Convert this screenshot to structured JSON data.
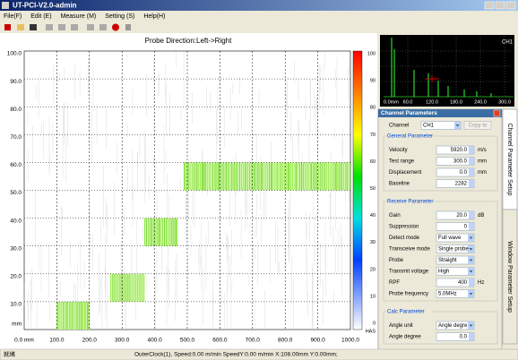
{
  "window": {
    "title": "UT-PCI-V2.0-admin"
  },
  "menu": [
    "File(F)",
    "Edit (E)",
    "Measure (M)",
    "Setting (S)",
    "Help(H)"
  ],
  "cscan": {
    "title": "Probe Direction:Left->Right",
    "y_labels": [
      "100.0",
      "90.0",
      "80.0",
      "70.0",
      "60.0",
      "50.0",
      "40.0",
      "30.0",
      "20.0",
      "10.0"
    ],
    "y_unit": "mm",
    "x_labels": [
      "0.0 mm",
      "100.0",
      "200.0",
      "300.0",
      "400.0",
      "500.0",
      "600.0",
      "700.0",
      "800.0",
      "900.0",
      "1000.0"
    ],
    "scale_labels": [
      "100",
      "90",
      "80",
      "70",
      "60",
      "50",
      "40",
      "30",
      "20",
      "10",
      "0"
    ],
    "scale_unit": "HAS"
  },
  "ascan": {
    "channel": "CH1",
    "x_labels": [
      "0.0mm",
      "60.0",
      "120.0",
      "180.0",
      "240.0",
      "300.0"
    ]
  },
  "panel": {
    "title": "Channel Parameters",
    "channel_label": "Channel",
    "channel": "CH1",
    "copy_button": "Copy to",
    "groups": [
      {
        "title": "General Parameter",
        "rows": [
          {
            "label": "Velocity",
            "value": "5920.0",
            "unit": "m/s"
          },
          {
            "label": "Test range",
            "value": "300.0",
            "unit": "mm"
          },
          {
            "label": "Displacement",
            "value": "0.0",
            "unit": "mm"
          },
          {
            "label": "Baseline",
            "value": "2282"
          }
        ]
      },
      {
        "title": "Receive Parameter",
        "rows": [
          {
            "label": "Gain",
            "value": "20.0",
            "unit": "dB"
          },
          {
            "label": "Suppression",
            "value": "0"
          },
          {
            "label": "Detect mode",
            "value": "Full wave"
          },
          {
            "label": "Transceive mode",
            "value": "Single probe"
          },
          {
            "label": "Probe",
            "value": "Straight"
          },
          {
            "label": "Transmit voltage",
            "value": "High"
          },
          {
            "label": "RPF",
            "value": "400",
            "unit": "Hz"
          },
          {
            "label": "Probe frequency",
            "value": "5.0MHz"
          }
        ]
      },
      {
        "title": "Calc Parameter",
        "rows": [
          {
            "label": "Angle unit",
            "value": "Angle degre"
          },
          {
            "label": "Angle degree",
            "value": "0.0"
          }
        ]
      }
    ]
  },
  "side_tabs": [
    "Channel Parameter Setup",
    "Window Parameter Setup"
  ],
  "status": {
    "ready": "就绪",
    "info": "OuterClock(1), Speed:0.00 m/min  SpeedY:0.00 m/min  X:108.00mm Y:0.00mm;"
  }
}
